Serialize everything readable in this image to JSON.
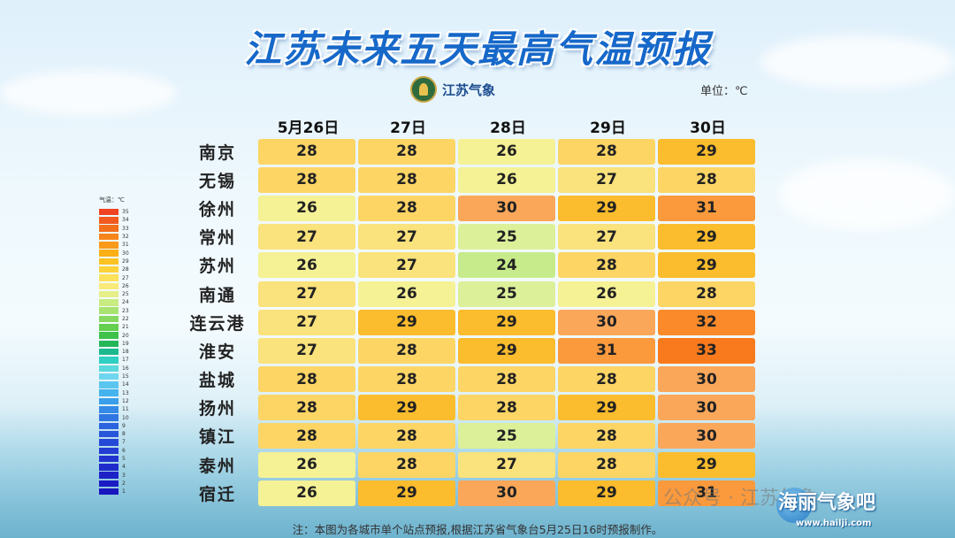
{
  "title": "江苏未来五天最高气温预报",
  "logo_text": "江苏气象",
  "unit_label": "单位：℃",
  "legend_title": "气温：℃",
  "legend_values": [
    35,
    34,
    33,
    32,
    31,
    30,
    29,
    28,
    27,
    26,
    25,
    24,
    23,
    22,
    21,
    20,
    19,
    18,
    17,
    16,
    15,
    14,
    13,
    12,
    11,
    10,
    9,
    8,
    7,
    6,
    5,
    4,
    3,
    2,
    1
  ],
  "legend_colors": {
    "35": "#ef4322",
    "34": "#f25a1f",
    "33": "#f46f1c",
    "32": "#f7851b",
    "31": "#f99a1a",
    "30": "#fbb016",
    "29": "#fcc222",
    "28": "#fdd238",
    "27": "#fde15a",
    "26": "#f9ea7a",
    "25": "#e6ef88",
    "24": "#c9ec82",
    "23": "#a8e371",
    "22": "#86d95e",
    "21": "#63cf4d",
    "20": "#3fc24a",
    "19": "#25b65a",
    "18": "#1cb98e",
    "17": "#2fcfc1",
    "16": "#5ad9dd",
    "15": "#6fd6ef",
    "14": "#5ac6f0",
    "13": "#45b3ee",
    "12": "#3a9eea",
    "11": "#358ae6",
    "10": "#2f76e2",
    "9": "#2a64de",
    "8": "#2756da",
    "7": "#2549d7",
    "6": "#233dd3",
    "5": "#2133cf",
    "4": "#1f2acb",
    "3": "#1d22c7",
    "2": "#1b1bc3",
    "1": "#1915bf"
  },
  "cell_colors": {
    "24": "#c7eb8b",
    "25": "#dcf09a",
    "26": "#f5f195",
    "27": "#fae27c",
    "28": "#fcd565",
    "29": "#fbbc2d",
    "30": "#fba75a",
    "31": "#fa9a3c",
    "32": "#fa8a2a",
    "33": "#f97a1c"
  },
  "chart_data": {
    "type": "table",
    "title": "江苏未来五天最高气温预报",
    "unit": "℃",
    "columns": [
      "5月26日",
      "27日",
      "28日",
      "29日",
      "30日"
    ],
    "rows": [
      {
        "city": "南京",
        "values": [
          28,
          28,
          26,
          28,
          29
        ]
      },
      {
        "city": "无锡",
        "values": [
          28,
          28,
          26,
          27,
          28
        ]
      },
      {
        "city": "徐州",
        "values": [
          26,
          28,
          30,
          29,
          31
        ]
      },
      {
        "city": "常州",
        "values": [
          27,
          27,
          25,
          27,
          29
        ]
      },
      {
        "city": "苏州",
        "values": [
          26,
          27,
          24,
          28,
          29
        ]
      },
      {
        "city": "南通",
        "values": [
          27,
          26,
          25,
          26,
          28
        ]
      },
      {
        "city": "连云港",
        "values": [
          27,
          29,
          29,
          30,
          32
        ]
      },
      {
        "city": "淮安",
        "values": [
          27,
          28,
          29,
          31,
          33
        ]
      },
      {
        "city": "盐城",
        "values": [
          28,
          28,
          28,
          28,
          30
        ]
      },
      {
        "city": "扬州",
        "values": [
          28,
          29,
          28,
          29,
          30
        ]
      },
      {
        "city": "镇江",
        "values": [
          28,
          28,
          25,
          28,
          30
        ]
      },
      {
        "city": "泰州",
        "values": [
          26,
          28,
          27,
          28,
          29
        ]
      },
      {
        "city": "宿迁",
        "values": [
          26,
          29,
          30,
          29,
          31
        ]
      }
    ]
  },
  "note": "注：本图为各城市单个站点预报,根据江苏省气象台5月25日16时预报制作。",
  "watermark_text": "公众号 · 江苏气象",
  "watermark_site": "海丽气象吧",
  "watermark_url": "www.hailji.com"
}
